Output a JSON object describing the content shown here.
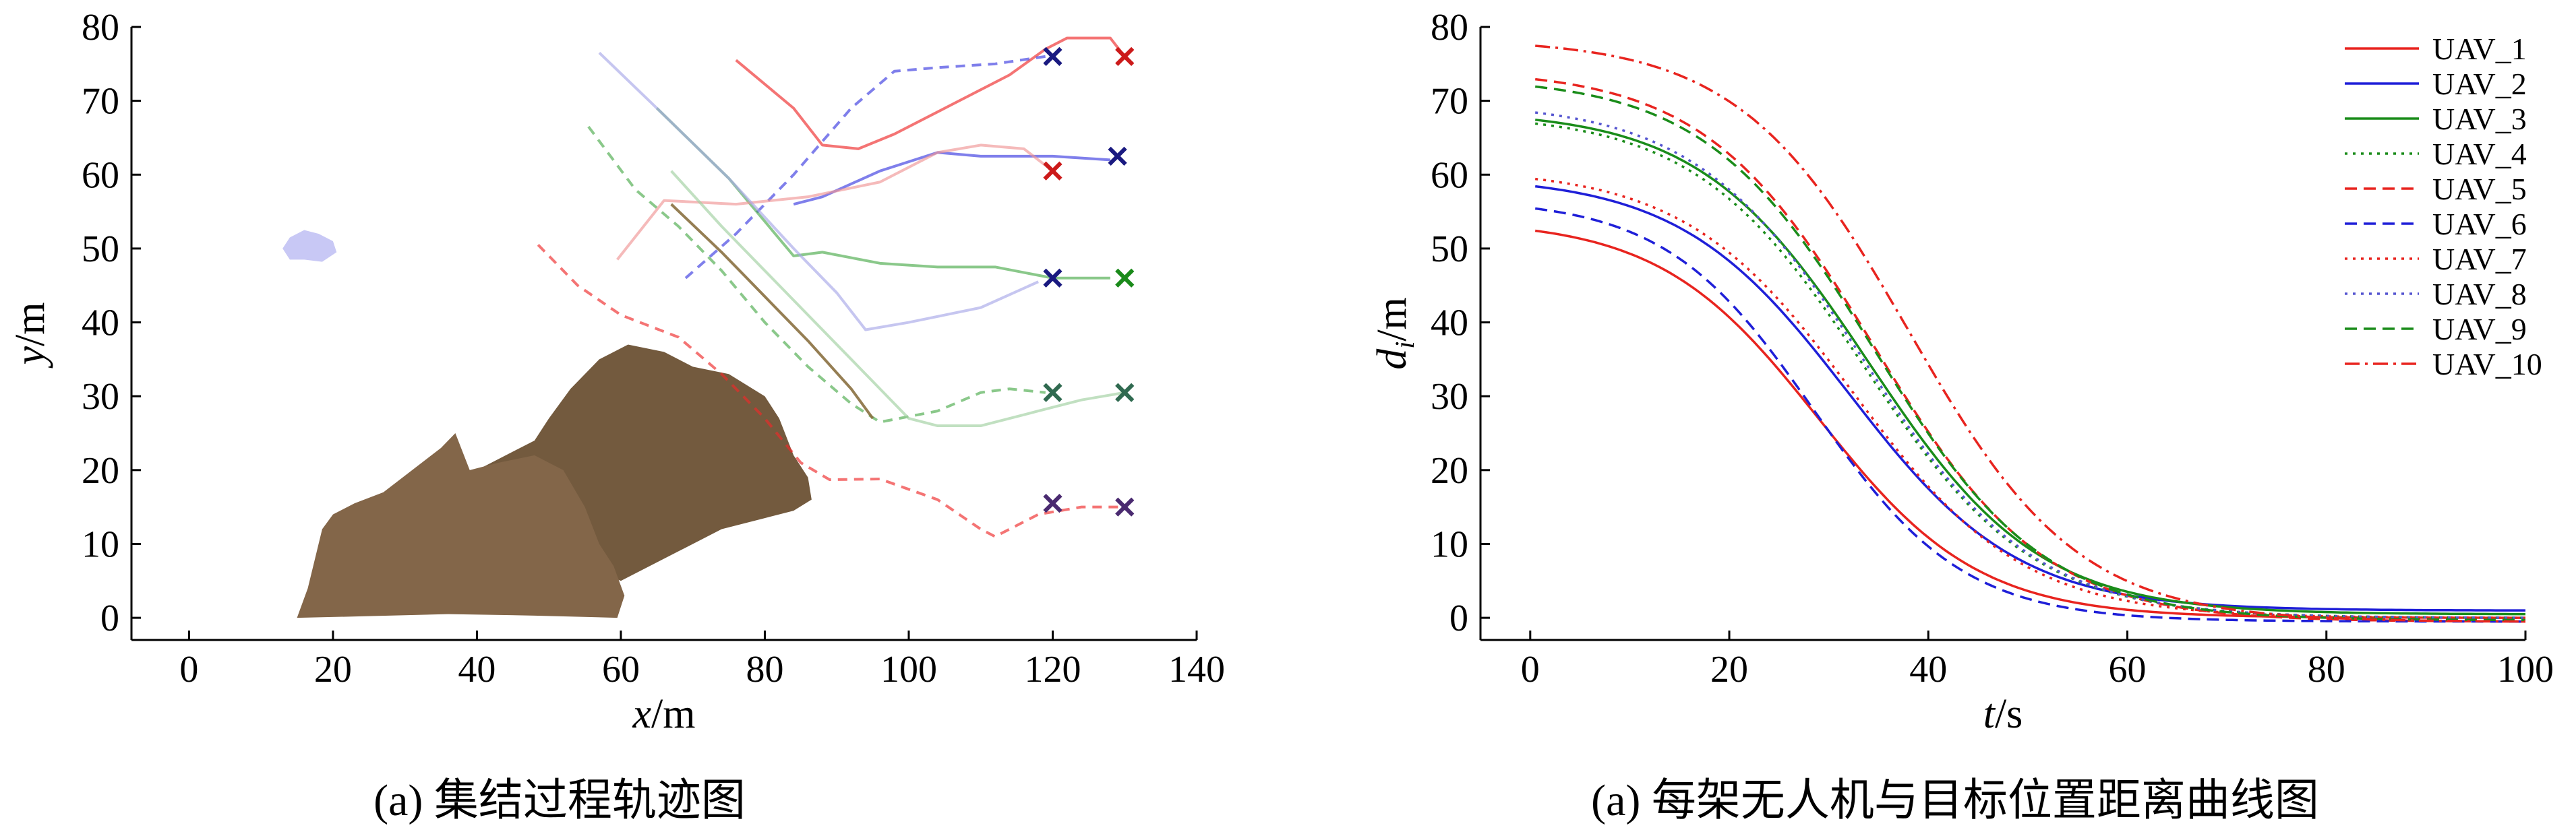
{
  "chart_data": [
    {
      "type": "scatter",
      "caption": "(a) 集结过程轨迹图",
      "xlabel": {
        "var": "x",
        "unit": "/m"
      },
      "ylabel": {
        "var": "y",
        "unit": "/m"
      },
      "xlim": [
        -8,
        140
      ],
      "ylim": [
        -3,
        80
      ],
      "xticks": [
        0,
        20,
        40,
        60,
        80,
        100,
        120,
        140
      ],
      "yticks": [
        0,
        10,
        20,
        30,
        40,
        50,
        60,
        70,
        80
      ],
      "obstacles": [
        {
          "name": "cloud",
          "color": "#c8c8f5",
          "points": [
            [
              13,
              50
            ],
            [
              14,
              51.5
            ],
            [
              16,
              52.5
            ],
            [
              18,
              52
            ],
            [
              20,
              51
            ],
            [
              20.5,
              49.5
            ],
            [
              18.5,
              48.2
            ],
            [
              16,
              48.5
            ],
            [
              14,
              48.5
            ]
          ]
        },
        {
          "name": "mountain-large",
          "color": "#735a3e",
          "points": [
            [
              40,
              20
            ],
            [
              48,
              24
            ],
            [
              50,
              27
            ],
            [
              53,
              31
            ],
            [
              57,
              35
            ],
            [
              61,
              37
            ],
            [
              66,
              36
            ],
            [
              70,
              34
            ],
            [
              75,
              33
            ],
            [
              80,
              30
            ],
            [
              82,
              27
            ],
            [
              84,
              22
            ],
            [
              86,
              19
            ],
            [
              86.5,
              16
            ],
            [
              84,
              14.5
            ],
            [
              80,
              13.5
            ],
            [
              74,
              12
            ],
            [
              68,
              9
            ],
            [
              60,
              5
            ],
            [
              53,
              8
            ],
            [
              47,
              10
            ],
            [
              42,
              13
            ]
          ]
        },
        {
          "name": "mountain-small",
          "color": "#836649",
          "points": [
            [
              15,
              0
            ],
            [
              16.5,
              4
            ],
            [
              17.5,
              8
            ],
            [
              18.5,
              12
            ],
            [
              20,
              14
            ],
            [
              23,
              15.5
            ],
            [
              27,
              17
            ],
            [
              31,
              20
            ],
            [
              35,
              23
            ],
            [
              37,
              25
            ],
            [
              39,
              20
            ],
            [
              43,
              21
            ],
            [
              48,
              22
            ],
            [
              52,
              20
            ],
            [
              55,
              15
            ],
            [
              57,
              10
            ],
            [
              59,
              7
            ],
            [
              60.5,
              3
            ],
            [
              59.5,
              0
            ],
            [
              48,
              0.3
            ],
            [
              36,
              0.5
            ],
            [
              24,
              0.2
            ]
          ]
        }
      ],
      "series": [
        {
          "color": "#ee2a2a",
          "dash": "",
          "opacity": 0.65,
          "points": [
            [
              76,
              75.5
            ],
            [
              84,
              69
            ],
            [
              88,
              64
            ],
            [
              93,
              63.5
            ],
            [
              98,
              65.5
            ],
            [
              106,
              69.5
            ],
            [
              114,
              73.5
            ],
            [
              119,
              77
            ],
            [
              122,
              78.5
            ],
            [
              128,
              78.5
            ],
            [
              130,
              76
            ]
          ]
        },
        {
          "color": "#ee2a2a",
          "dash": "14,10",
          "opacity": 0.65,
          "points": [
            [
              48.5,
              50.5
            ],
            [
              54,
              45
            ],
            [
              60,
              41
            ],
            [
              68,
              38
            ],
            [
              74,
              33
            ],
            [
              80,
              27
            ],
            [
              85,
              21
            ],
            [
              89,
              18.7
            ],
            [
              96,
              18.8
            ],
            [
              104,
              16
            ],
            [
              110,
              12
            ],
            [
              112,
              11
            ],
            [
              118,
              14
            ],
            [
              124,
              15
            ],
            [
              130,
              15
            ]
          ]
        },
        {
          "color": "#3b3be0",
          "dash": "",
          "opacity": 0.65,
          "points": [
            [
              84,
              56
            ],
            [
              88,
              57
            ],
            [
              96,
              60.5
            ],
            [
              104,
              63
            ],
            [
              110,
              62.5
            ],
            [
              120,
              62.5
            ],
            [
              128,
              62
            ]
          ]
        },
        {
          "color": "#3b3be0",
          "dash": "14,10",
          "opacity": 0.65,
          "points": [
            [
              69,
              46
            ],
            [
              76,
              52
            ],
            [
              84,
              60
            ],
            [
              92,
              69
            ],
            [
              98,
              74
            ],
            [
              104,
              74.5
            ],
            [
              112,
              75
            ],
            [
              119,
              76
            ]
          ]
        },
        {
          "color": "#2a9a2a",
          "dash": "",
          "opacity": 0.55,
          "points": [
            [
              65,
              69
            ],
            [
              75,
              59.5
            ],
            [
              84,
              49
            ],
            [
              88,
              49.5
            ],
            [
              96,
              48
            ],
            [
              104,
              47.5
            ],
            [
              112,
              47.5
            ],
            [
              120,
              46
            ],
            [
              128,
              46
            ]
          ]
        },
        {
          "color": "#2a9a2a",
          "dash": "14,10",
          "opacity": 0.55,
          "points": [
            [
              55.5,
              66.5
            ],
            [
              62,
              58
            ],
            [
              68,
              53
            ],
            [
              74,
              47
            ],
            [
              80,
              40
            ],
            [
              86,
              34
            ],
            [
              92,
              29
            ],
            [
              96,
              26.5
            ],
            [
              104,
              28
            ],
            [
              110,
              30.5
            ],
            [
              114,
              31
            ],
            [
              119,
              30.5
            ]
          ]
        },
        {
          "color": "#f09595",
          "dash": "",
          "opacity": 0.65,
          "points": [
            [
              59.5,
              48.5
            ],
            [
              66,
              56.5
            ],
            [
              76,
              56
            ],
            [
              86,
              57
            ],
            [
              96,
              59
            ],
            [
              104,
              63
            ],
            [
              110,
              64
            ],
            [
              116,
              63.5
            ],
            [
              120,
              60.5
            ]
          ]
        },
        {
          "color": "#a8a8e8",
          "dash": "",
          "opacity": 0.65,
          "points": [
            [
              57,
              76.5
            ],
            [
              65,
              69
            ],
            [
              75,
              59.5
            ],
            [
              84,
              50
            ],
            [
              90,
              44
            ],
            [
              94,
              39
            ],
            [
              100,
              40
            ],
            [
              110,
              42
            ],
            [
              118,
              45.5
            ]
          ]
        },
        {
          "color": "#9fcf9f",
          "dash": "",
          "opacity": 0.65,
          "points": [
            [
              67,
              60.5
            ],
            [
              74,
              53
            ],
            [
              82,
              45
            ],
            [
              90,
              37
            ],
            [
              96,
              31
            ],
            [
              100,
              27
            ],
            [
              104,
              26
            ],
            [
              110,
              26
            ],
            [
              118,
              28
            ],
            [
              124,
              29.5
            ],
            [
              130,
              30.5
            ]
          ]
        },
        {
          "color": "#8a7040",
          "dash": "",
          "opacity": 0.9,
          "points": [
            [
              67,
              56
            ],
            [
              74,
              49.5
            ],
            [
              80,
              43.5
            ],
            [
              86,
              37.5
            ],
            [
              92,
              31
            ],
            [
              95,
              27
            ]
          ]
        }
      ],
      "markers": [
        {
          "x": 120,
          "y": 76,
          "color": "#1a1a80"
        },
        {
          "x": 130,
          "y": 76,
          "color": "#cc1a1a"
        },
        {
          "x": 120,
          "y": 60.5,
          "color": "#cc1a1a"
        },
        {
          "x": 129,
          "y": 62.5,
          "color": "#1a1a80"
        },
        {
          "x": 120,
          "y": 46,
          "color": "#1a1a80"
        },
        {
          "x": 130,
          "y": 46,
          "color": "#1a8a1a"
        },
        {
          "x": 120,
          "y": 30.5,
          "color": "#306a50"
        },
        {
          "x": 130,
          "y": 30.5,
          "color": "#306a50"
        },
        {
          "x": 120,
          "y": 15.5,
          "color": "#4a2a70"
        },
        {
          "x": 130,
          "y": 15,
          "color": "#4a2a70"
        }
      ]
    },
    {
      "type": "line",
      "caption": "(a) 每架无人机与目标位置距离曲线图",
      "xlabel": {
        "var": "t",
        "unit": "/s"
      },
      "ylabel": {
        "var": "d",
        "sub": "i",
        "unit": "/m"
      },
      "xlim": [
        -5,
        100
      ],
      "ylim": [
        -3,
        80
      ],
      "xticks": [
        0,
        20,
        40,
        60,
        80,
        100
      ],
      "yticks": [
        0,
        10,
        20,
        30,
        40,
        50,
        60,
        70,
        80
      ],
      "legend_position": "top-right",
      "series": [
        {
          "name": "UAV_1",
          "color": "#e8241f",
          "dash": "",
          "d0": 52.5,
          "t50": 29,
          "k": 8,
          "end": 0.0
        },
        {
          "name": "UAV_2",
          "color": "#1f1fd8",
          "dash": "",
          "d0": 58.5,
          "t50": 32,
          "k": 8.5,
          "end": 1.0
        },
        {
          "name": "UAV_3",
          "color": "#1a8c1a",
          "dash": "",
          "d0": 67.5,
          "t50": 34,
          "k": 8.5,
          "end": 0.5
        },
        {
          "name": "UAV_4",
          "color": "#1a8c1a",
          "dash": "4,8",
          "d0": 67,
          "t50": 33.5,
          "k": 8.5,
          "end": 0.0
        },
        {
          "name": "UAV_5",
          "color": "#e8241f",
          "dash": "18,10",
          "d0": 73,
          "t50": 34.5,
          "k": 8.5,
          "end": -0.5
        },
        {
          "name": "UAV_6",
          "color": "#1f1fd8",
          "dash": "18,10",
          "d0": 55.5,
          "t50": 28.5,
          "k": 7.5,
          "end": -0.5
        },
        {
          "name": "UAV_7",
          "color": "#e8241f",
          "dash": "4,8",
          "d0": 59.5,
          "t50": 32.5,
          "k": 8.5,
          "end": 0.0
        },
        {
          "name": "UAV_8",
          "color": "#5555d0",
          "dash": "4,8",
          "d0": 68.5,
          "t50": 33.5,
          "k": 8.5,
          "end": 0.0
        },
        {
          "name": "UAV_9",
          "color": "#1a8c1a",
          "dash": "18,10",
          "d0": 72,
          "t50": 34.5,
          "k": 8.5,
          "end": -0.3
        },
        {
          "name": "UAV_10",
          "color": "#e8241f",
          "dash": "22,8,4,8",
          "d0": 77.5,
          "t50": 38,
          "k": 8.5,
          "end": -0.5
        }
      ]
    }
  ]
}
